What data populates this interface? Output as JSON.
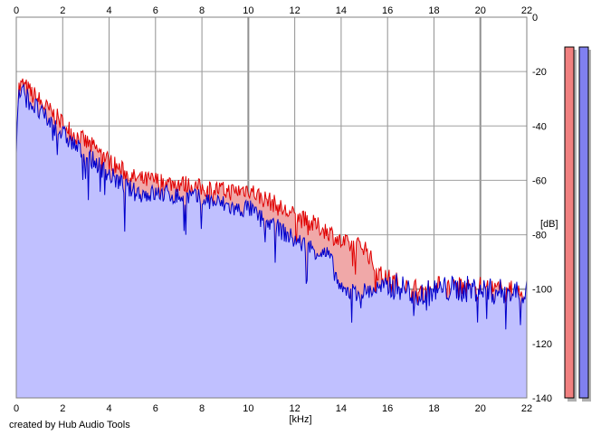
{
  "chart_data": {
    "type": "area",
    "xlabel": "[kHz]",
    "ylabel": "[dB]",
    "xlim": [
      0,
      22
    ],
    "ylim": [
      -140,
      0
    ],
    "x_ticks": [
      "0",
      "2",
      "4",
      "6",
      "8",
      "10",
      "12",
      "14",
      "16",
      "18",
      "20",
      "22"
    ],
    "x_tick_values": [
      0,
      2,
      4,
      6,
      8,
      10,
      12,
      14,
      16,
      18,
      20,
      22
    ],
    "y_ticks": [
      "0",
      "-20",
      "-40",
      "-60",
      "-80",
      "-100",
      "-120",
      "-140"
    ],
    "y_tick_values": [
      0,
      -20,
      -40,
      -60,
      -80,
      -100,
      -120,
      -140
    ],
    "grid": true,
    "series": [
      {
        "color": "#e00000",
        "fill": "#f0a8a8",
        "x": [
          0,
          0.1,
          0.3,
          0.5,
          1,
          1.5,
          2,
          2.5,
          3,
          3.5,
          4,
          4.5,
          5,
          5.5,
          6,
          6.5,
          7,
          7.5,
          8,
          8.5,
          9,
          9.5,
          10,
          10.5,
          11,
          11.5,
          12,
          12.5,
          13,
          13.5,
          14,
          14.5,
          15,
          15.5,
          16,
          16.5,
          17,
          17.5,
          18,
          18.5,
          19,
          19.5,
          20,
          20.5,
          21,
          21.5,
          22
        ],
        "y": [
          -48,
          -26,
          -25,
          -27,
          -31,
          -35,
          -39,
          -43,
          -46,
          -49,
          -53,
          -56,
          -59,
          -60,
          -60,
          -61,
          -61,
          -62,
          -63,
          -63,
          -64,
          -64,
          -63,
          -66,
          -68,
          -71,
          -73,
          -75,
          -77,
          -79,
          -83,
          -84,
          -84,
          -93,
          -97,
          -99,
          -101,
          -101,
          -100,
          -100,
          -100,
          -100,
          -100,
          -101,
          -101,
          -102,
          -103
        ]
      },
      {
        "color": "#0000cc",
        "fill": "#c0c0ff",
        "x": [
          0,
          0.1,
          0.3,
          0.5,
          1,
          1.5,
          2,
          2.5,
          3,
          3.5,
          4,
          4.5,
          5,
          5.5,
          6,
          6.5,
          7,
          7.5,
          8,
          8.5,
          9,
          9.5,
          10,
          10.5,
          11,
          11.5,
          12,
          12.5,
          13,
          13.5,
          14,
          14.5,
          15,
          15.5,
          16,
          16.5,
          17,
          17.5,
          18,
          18.5,
          19,
          19.5,
          20,
          20.5,
          21,
          21.5,
          22
        ],
        "y": [
          -50,
          -28,
          -28,
          -30,
          -35,
          -39,
          -43,
          -47,
          -51,
          -54,
          -58,
          -61,
          -64,
          -65,
          -65,
          -65,
          -66,
          -66,
          -67,
          -68,
          -69,
          -71,
          -70,
          -74,
          -76,
          -79,
          -82,
          -84,
          -86,
          -88,
          -101,
          -101,
          -101,
          -100,
          -99,
          -99,
          -101,
          -102,
          -101,
          -100,
          -100,
          -100,
          -100,
          -101,
          -101,
          -101,
          -101
        ]
      }
    ],
    "level_meters": [
      {
        "color": "#f08080",
        "value": -10
      },
      {
        "color": "#8080f0",
        "value": -10
      }
    ]
  },
  "footer": {
    "credit": "created by Hub Audio Tools"
  }
}
